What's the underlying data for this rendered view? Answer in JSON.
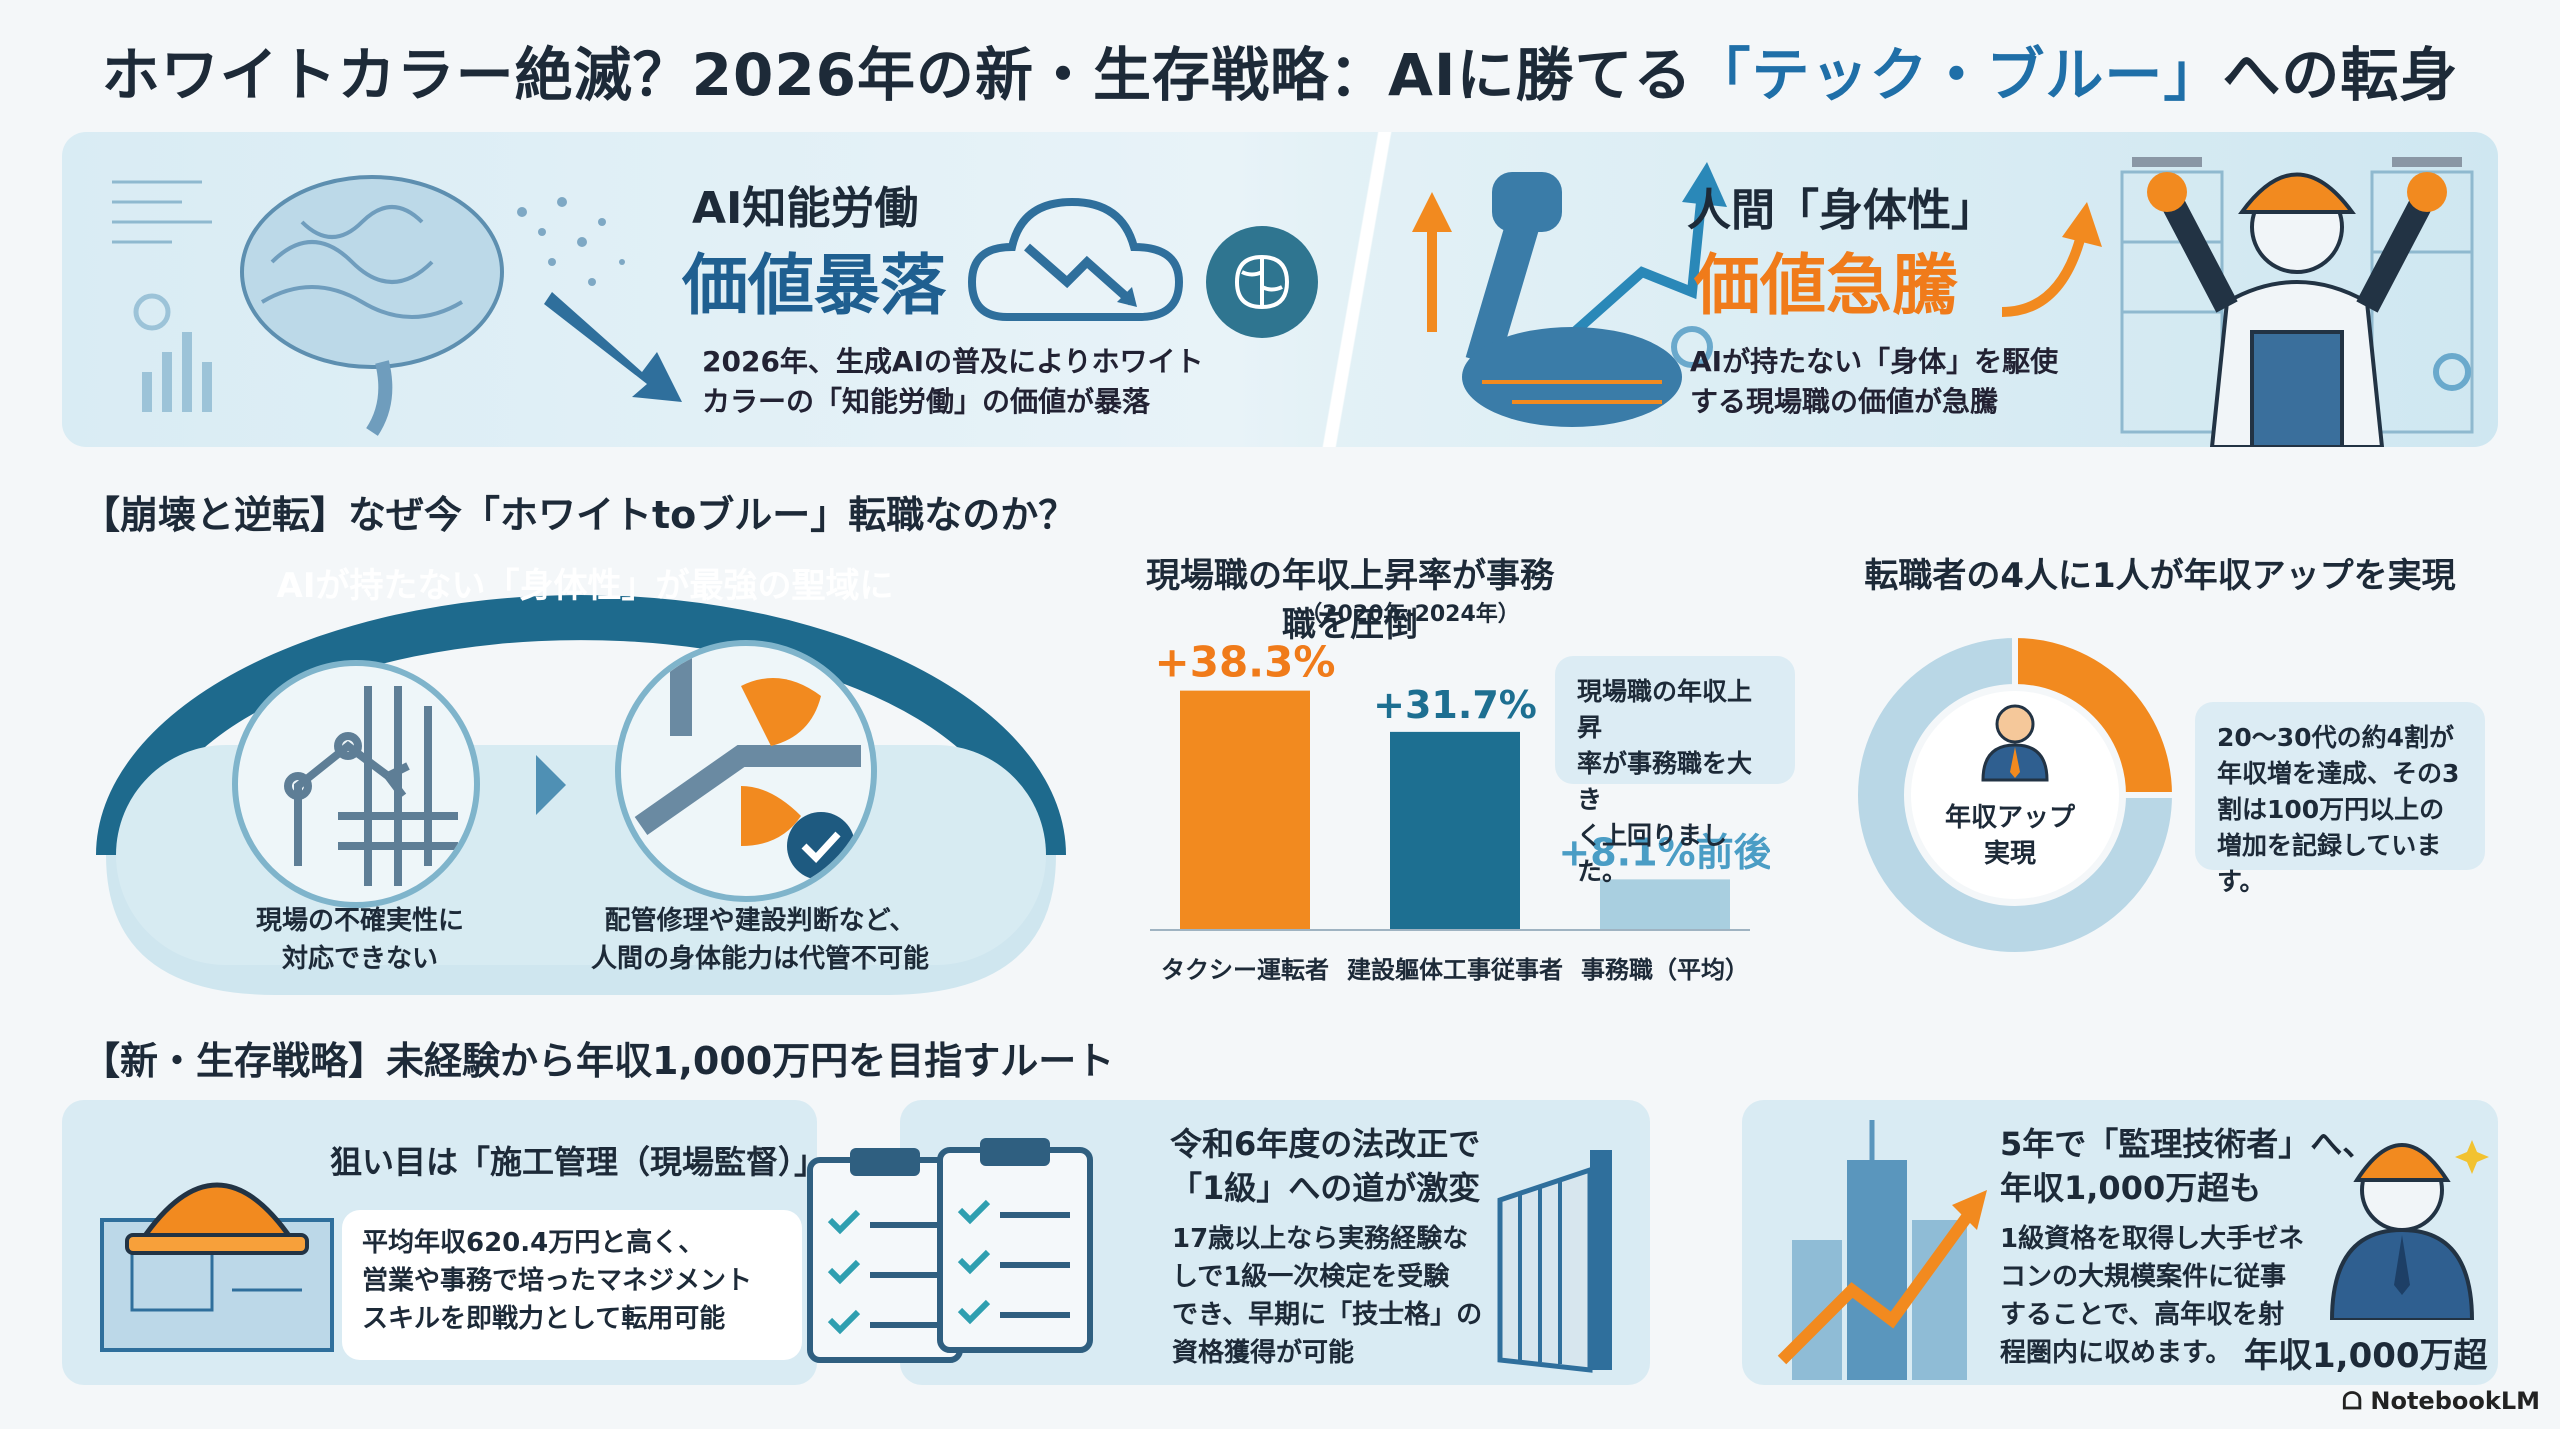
{
  "title": {
    "prefix": "ホワイトカラー絶滅？2026年の新・生存戦略：AIに勝てる",
    "highlight": "「テック・ブルー」",
    "suffix": "への転身"
  },
  "banner": {
    "left_head": "AI知能労働",
    "left_value": "価値暴落",
    "left_desc_1": "2026年、生成AIの普及によりホワイト",
    "left_desc_2": "カラーの「知能労働」の価値が暴落",
    "right_head": "人間「身体性」",
    "right_value": "価値急騰",
    "right_desc_1": "AIが持たない「身体」を駆使",
    "right_desc_2": "する現場職の価値が急騰"
  },
  "section1": {
    "heading": "【崩壊と逆転】なぜ今「ホワイトtoブルー」転職なのか？",
    "arch_label": "AIが持たない「身体性」が最強の聖域に",
    "left_cap_1": "現場の不確実性に",
    "left_cap_2": "対応できない",
    "right_cap_1": "配管修理や建設判断など、",
    "right_cap_2": "人間の身体能力は代管不可能"
  },
  "chart_data": [
    {
      "type": "bar",
      "title": "現場職の年収上昇率が事務職を圧倒",
      "subtitle": "（2020年-2024年）",
      "categories": [
        "タクシー運転者",
        "建設軀体工事従事者",
        "事務職（平均）"
      ],
      "values": [
        38.3,
        31.7,
        8.1
      ],
      "value_labels": [
        "+38.3%",
        "+31.7%",
        "+8.1%前後"
      ],
      "ylim": [
        0,
        40
      ],
      "colors": [
        "#f28a1f",
        "#1d6f91",
        "#a9cfe0"
      ],
      "annotation": [
        "現場職の年収上昇",
        "率が事務職を大き",
        "く上回りました。"
      ]
    },
    {
      "type": "pie",
      "title": "転職者の4人に1人が年収アップを実現",
      "center_label": [
        "年収アップ",
        "実現"
      ],
      "values": [
        25,
        75
      ],
      "colors": [
        "#f28a1f",
        "#b9d7e6"
      ],
      "annotation": [
        "20～30代の約4割が",
        "年収増を達成、その3",
        "割は100万円以上の",
        "増加を記録しています。"
      ]
    }
  ],
  "section2": {
    "heading": "【新・生存戦略】未経験から年収1,000万円を目指すルート",
    "card1_head": "狙い目は「施工管理（現場監督）」",
    "card1_text": [
      "平均年収620.4万円と高く、",
      "営業や事務で培ったマネジメント",
      "スキルを即戦力として転用可能"
    ],
    "card2_head": [
      "令和6年度の法改正で",
      "「1級」への道が激変"
    ],
    "card2_text": [
      "17歳以上なら実務経験な",
      "しで1級一次検定を受験",
      "でき、早期に「技士格」の",
      "資格獲得が可能"
    ],
    "card3_head": [
      "5年で「監理技術者」へ、",
      "年収1,000万超も"
    ],
    "card3_text": [
      "1級資格を取得し大手ゼネ",
      "コンの大規模案件に従事",
      "することで、高年収を射",
      "程圏内に収めます。"
    ],
    "card3_badge": "年収1,000万超"
  },
  "brand": "NotebookLM"
}
